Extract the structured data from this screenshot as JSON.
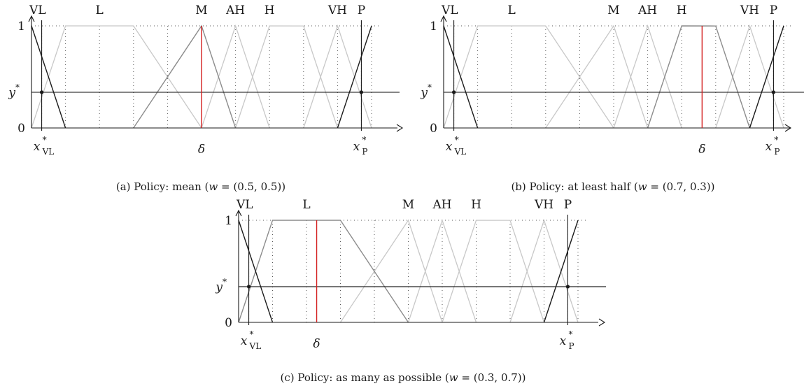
{
  "figure": {
    "panels": [
      {
        "id": "a",
        "caption": "(a) Policy: mean (w = (0.5, 0.5))",
        "caption_parts": {
          "prefix": "(a) Policy: mean (",
          "w": "w",
          "rest": " = (0.5, 0.5))"
        },
        "delta_label": "δ",
        "delta": 0.5,
        "y_star": 0.35,
        "highlight": "M"
      },
      {
        "id": "b",
        "caption": "(b) Policy: at least half (w = (0.7, 0.3))",
        "caption_parts": {
          "prefix": "(b) Policy: at least half (",
          "w": "w",
          "rest": " = (0.7, 0.3))"
        },
        "delta_label": "δ",
        "delta": 0.76,
        "y_star": 0.35,
        "highlight": "H"
      },
      {
        "id": "c",
        "caption": "(c) Policy: as many as possible (w = (0.3, 0.7))",
        "caption_parts": {
          "prefix": "(c) Policy: as many as possible (",
          "w": "w",
          "rest": " = (0.3, 0.7))"
        },
        "delta_label": "δ",
        "delta": 0.23,
        "y_star": 0.35,
        "highlight": "L"
      }
    ],
    "terms": [
      {
        "name": "VL",
        "points": [
          [
            0.0,
            1
          ],
          [
            0.1,
            0
          ]
        ]
      },
      {
        "name": "L",
        "points": [
          [
            0.0,
            0
          ],
          [
            0.1,
            1
          ],
          [
            0.3,
            1
          ],
          [
            0.5,
            0
          ]
        ]
      },
      {
        "name": "M",
        "points": [
          [
            0.3,
            0
          ],
          [
            0.5,
            1
          ],
          [
            0.6,
            0
          ]
        ]
      },
      {
        "name": "AH",
        "points": [
          [
            0.5,
            0
          ],
          [
            0.6,
            1
          ],
          [
            0.7,
            0
          ]
        ]
      },
      {
        "name": "H",
        "points": [
          [
            0.6,
            0
          ],
          [
            0.7,
            1
          ],
          [
            0.8,
            0.999
          ],
          [
            0.9,
            0
          ]
        ]
      },
      {
        "name": "VH",
        "points": [
          [
            0.8,
            0
          ],
          [
            0.9,
            1
          ],
          [
            1.0,
            0
          ]
        ]
      },
      {
        "name": "P",
        "points": [
          [
            0.9,
            0
          ],
          [
            1.0,
            1
          ]
        ]
      }
    ],
    "term_label_x": {
      "VL": 0.0,
      "L": 0.2,
      "M": 0.5,
      "AH": 0.6,
      "H": 0.7,
      "VH": 0.9,
      "P": 0.97
    },
    "grid_x": [
      0.03,
      0.1,
      0.2,
      0.3,
      0.4,
      0.5,
      0.6,
      0.7,
      0.8,
      0.9,
      0.97,
      1.0
    ],
    "ytick_labels": {
      "one": "1",
      "zero": "0",
      "ystar_base": "y",
      "ystar_sup": "*"
    },
    "x_vl": 0.03,
    "x_p": 0.97,
    "xvl_label": {
      "base": "x",
      "sup": "*",
      "sub": "VL"
    },
    "xp_label": {
      "base": "x",
      "sup": "*",
      "sub": "P"
    },
    "colors": {
      "axis": "#1a1a1a",
      "dark": "#1a1a1a",
      "medium": "#8c8c8c",
      "light": "#c8c8c8",
      "delta": "#d42020",
      "grid": "#555555"
    }
  }
}
